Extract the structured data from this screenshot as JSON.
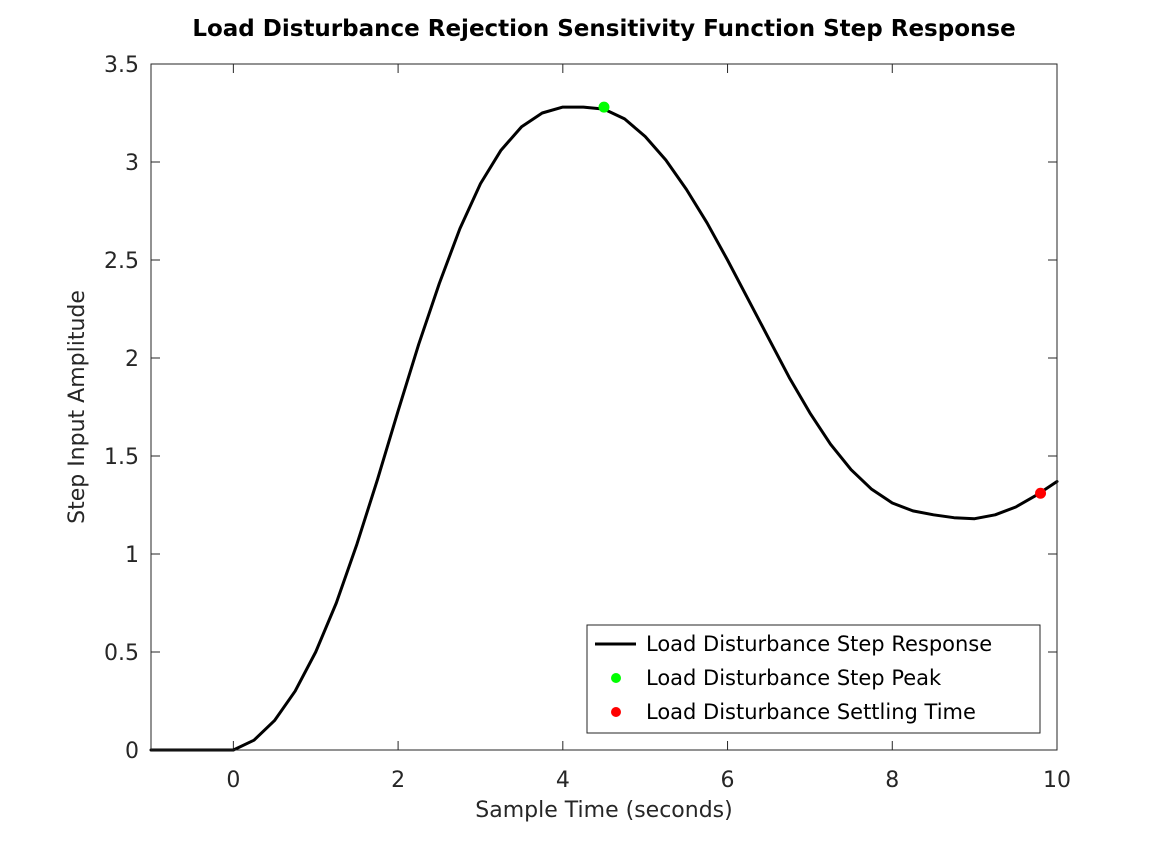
{
  "chart_data": {
    "type": "line",
    "title": "Load Disturbance Rejection Sensitivity Function Step Response",
    "xlabel": "Sample Time (seconds)",
    "ylabel": "Step Input Amplitude",
    "xlim": [
      -1,
      10
    ],
    "ylim": [
      0,
      3.5
    ],
    "xticks": [
      0,
      2,
      4,
      6,
      8,
      10
    ],
    "xtick_labels": [
      "0",
      "2",
      "4",
      "6",
      "8",
      "10"
    ],
    "yticks": [
      0,
      0.5,
      1,
      1.5,
      2,
      2.5,
      3,
      3.5
    ],
    "ytick_labels": [
      "0",
      "0.5",
      "1",
      "1.5",
      "2",
      "2.5",
      "3",
      "3.5"
    ],
    "grid": false,
    "legend_position": "bottom-right",
    "series": [
      {
        "name": "Load Disturbance Step Response",
        "kind": "line",
        "color": "#000000",
        "x": [
          -1,
          0,
          0.25,
          0.5,
          0.75,
          1,
          1.25,
          1.5,
          1.75,
          2,
          2.25,
          2.5,
          2.75,
          3,
          3.25,
          3.5,
          3.75,
          4,
          4.25,
          4.5,
          4.75,
          5,
          5.25,
          5.5,
          5.75,
          6,
          6.25,
          6.5,
          6.75,
          7,
          7.25,
          7.5,
          7.75,
          8,
          8.25,
          8.5,
          8.75,
          9,
          9.25,
          9.5,
          9.75,
          10
        ],
        "y": [
          0,
          0,
          0.05,
          0.15,
          0.3,
          0.5,
          0.75,
          1.05,
          1.38,
          1.73,
          2.07,
          2.38,
          2.66,
          2.89,
          3.06,
          3.18,
          3.25,
          3.28,
          3.28,
          3.27,
          3.22,
          3.13,
          3.01,
          2.86,
          2.69,
          2.5,
          2.3,
          2.1,
          1.9,
          1.72,
          1.56,
          1.43,
          1.33,
          1.26,
          1.22,
          1.2,
          1.185,
          1.18,
          1.2,
          1.24,
          1.3,
          1.37
        ]
      },
      {
        "name": "Load Disturbance Step Peak",
        "kind": "marker",
        "color": "#00ff00",
        "x": [
          4.5
        ],
        "y": [
          3.28
        ]
      },
      {
        "name": "Load Disturbance Settling Time",
        "kind": "marker",
        "color": "#ff0000",
        "x": [
          9.8
        ],
        "y": [
          1.31
        ]
      }
    ]
  }
}
